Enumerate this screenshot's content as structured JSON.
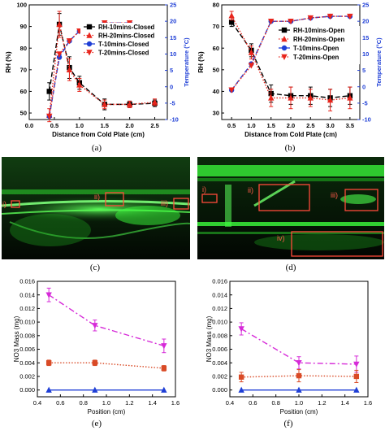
{
  "captions": [
    "(a)",
    "(b)",
    "(c)",
    "(d)",
    "(e)",
    "(f)"
  ],
  "photo_c_labels": [
    "i)",
    "ii)",
    "iii)"
  ],
  "photo_d_labels": [
    "i)",
    "ii)",
    "iii)",
    "iv)"
  ],
  "colors": {
    "black": "#000000",
    "red": "#e8251c",
    "blue": "#1f3fd6",
    "magenta": "#d62ad8",
    "rust": "#d94a26",
    "box": "#ff4a3a",
    "green": "#38ff3c"
  },
  "chart_data": [
    {
      "id": "a",
      "type": "line",
      "xlabel": "Distance from Cold Plate (cm)",
      "ylabel": "RH (%)",
      "y2label": "Temperature (°C)",
      "xlim": [
        0,
        2.75
      ],
      "ylim": [
        47,
        100
      ],
      "y2lim": [
        -10,
        25
      ],
      "xticks": [
        "0.0",
        "0.5",
        "1.0",
        "1.5",
        "2.0",
        "2.5"
      ],
      "yticks": [
        "50",
        "60",
        "70",
        "80",
        "90",
        "100"
      ],
      "y2ticks": [
        "-10",
        "-5",
        "0",
        "5",
        "10",
        "15",
        "20",
        "25"
      ],
      "legend_position": "top-right",
      "series": [
        {
          "name": "RH-10mins-Closed",
          "axis": "left",
          "marker": "square",
          "color": "#000000",
          "line": "dashed",
          "x": [
            0.4,
            0.6,
            0.8,
            1.0,
            1.5,
            2.0,
            2.5
          ],
          "y": [
            60,
            91,
            71,
            64,
            54,
            54,
            54.5
          ],
          "err": [
            4,
            5,
            5,
            3,
            2.5,
            1.5,
            1.5
          ]
        },
        {
          "name": "RH-20mins-Closed",
          "axis": "left",
          "marker": "triangle-up",
          "color": "#e8251c",
          "line": "dotted",
          "x": [
            0.4,
            0.6,
            0.8,
            1.0,
            1.5,
            2.0,
            2.5
          ],
          "y": [
            49,
            91,
            70,
            63,
            54,
            54,
            55
          ],
          "err": [
            3,
            6,
            5,
            3,
            2,
            1.5,
            1.5
          ]
        },
        {
          "name": "T-10mins-Closed",
          "axis": "right",
          "marker": "circle",
          "color": "#1f3fd6",
          "line": "dashed",
          "x": [
            0.4,
            0.6,
            0.8,
            1.0,
            1.5,
            2.0,
            2.5
          ],
          "y": [
            -9,
            9,
            14,
            17,
            19.5,
            19.5,
            18.5
          ]
        },
        {
          "name": "T-20mins-Closed",
          "axis": "right",
          "marker": "triangle-down",
          "color": "#e8251c",
          "line": "dotted",
          "x": [
            0.4,
            0.6,
            0.8,
            1.0,
            1.5,
            2.0,
            2.5
          ],
          "y": [
            -9,
            10,
            14,
            17,
            19.5,
            19.5,
            18.5
          ]
        }
      ]
    },
    {
      "id": "b",
      "type": "line",
      "xlabel": "Distance from Cold Plate (cm)",
      "ylabel": "RH (%)",
      "y2label": "Temperature (°C)",
      "xlim": [
        0.25,
        3.75
      ],
      "ylim": [
        27,
        80
      ],
      "y2lim": [
        -10,
        25
      ],
      "xticks": [
        "0.5",
        "1.0",
        "1.5",
        "2.0",
        "2.5",
        "3.0",
        "3.5"
      ],
      "yticks": [
        "30",
        "40",
        "50",
        "60",
        "70",
        "80"
      ],
      "y2ticks": [
        "-10",
        "-5",
        "0",
        "5",
        "10",
        "15",
        "20",
        "25"
      ],
      "legend_position": "center-right",
      "series": [
        {
          "name": "RH-10mins-Open",
          "axis": "left",
          "marker": "square",
          "color": "#000000",
          "line": "dashed",
          "x": [
            0.5,
            1.0,
            1.5,
            2.0,
            2.5,
            3.0,
            3.5
          ],
          "y": [
            72,
            59,
            39,
            38,
            38,
            37,
            38
          ],
          "err": [
            2,
            3,
            4,
            4,
            4,
            4,
            4
          ]
        },
        {
          "name": "RH-20mins-Open",
          "axis": "left",
          "marker": "triangle-up",
          "color": "#e8251c",
          "line": "dotted",
          "x": [
            0.5,
            1.0,
            1.5,
            2.0,
            2.5,
            3.0,
            3.5
          ],
          "y": [
            75,
            58,
            37,
            37,
            37,
            36,
            37
          ],
          "err": [
            2,
            3,
            4,
            5,
            4,
            5,
            5
          ]
        },
        {
          "name": "T-10mins-Open",
          "axis": "right",
          "marker": "circle",
          "color": "#1f3fd6",
          "line": "dashed",
          "x": [
            0.5,
            1.0,
            1.5,
            2.0,
            2.5,
            3.0,
            3.5
          ],
          "y": [
            -1,
            7,
            20,
            20,
            21,
            21.5,
            21.5
          ]
        },
        {
          "name": "T-20mins-Open",
          "axis": "right",
          "marker": "triangle-down",
          "color": "#e8251c",
          "line": "dotted",
          "x": [
            0.5,
            1.0,
            1.5,
            2.0,
            2.5,
            3.0,
            3.5
          ],
          "y": [
            -1,
            6.5,
            20,
            20,
            21,
            21.5,
            21.5
          ]
        }
      ]
    },
    {
      "id": "e",
      "type": "line",
      "xlabel": "Position (cm)",
      "ylabel": "NO3 Mass (mg)",
      "xlim": [
        0.4,
        1.6
      ],
      "ylim": [
        -0.001,
        0.016
      ],
      "xticks": [
        "0.4",
        "0.6",
        "0.8",
        "1.0",
        "1.2",
        "1.4",
        "1.6"
      ],
      "yticks": [
        "0.000",
        "0.002",
        "0.004",
        "0.006",
        "0.008",
        "0.010",
        "0.012",
        "0.014",
        "0.016"
      ],
      "series": [
        {
          "axis": "left",
          "marker": "triangle-down",
          "color": "#d62ad8",
          "line": "dashdot",
          "x": [
            0.5,
            0.9,
            1.5
          ],
          "y": [
            0.014,
            0.0095,
            0.0065
          ],
          "err": [
            0.001,
            0.0008,
            0.001
          ]
        },
        {
          "axis": "left",
          "marker": "square",
          "color": "#d94a26",
          "line": "dotted",
          "x": [
            0.5,
            0.9,
            1.5
          ],
          "y": [
            0.004,
            0.004,
            0.0032
          ],
          "err": [
            0.0004,
            0.0004,
            0.0004
          ]
        },
        {
          "axis": "left",
          "marker": "triangle-up",
          "color": "#1f3fd6",
          "line": "solid",
          "x": [
            0.5,
            0.9,
            1.5
          ],
          "y": [
            0,
            0,
            0
          ]
        }
      ]
    },
    {
      "id": "f",
      "type": "line",
      "xlabel": "Position (cm)",
      "ylabel": "NO3 Mass (mg)",
      "xlim": [
        0.4,
        1.6
      ],
      "ylim": [
        -0.001,
        0.016
      ],
      "xticks": [
        "0.4",
        "0.6",
        "0.8",
        "1.0",
        "1.2",
        "1.4",
        "1.6"
      ],
      "yticks": [
        "0.000",
        "0.002",
        "0.004",
        "0.006",
        "0.008",
        "0.010",
        "0.012",
        "0.014",
        "0.016"
      ],
      "series": [
        {
          "axis": "left",
          "marker": "triangle-down",
          "color": "#d62ad8",
          "line": "dashdot",
          "x": [
            0.5,
            1.0,
            1.5
          ],
          "y": [
            0.009,
            0.004,
            0.0038
          ],
          "err": [
            0.0009,
            0.0009,
            0.0012
          ]
        },
        {
          "axis": "left",
          "marker": "square",
          "color": "#d94a26",
          "line": "dotted",
          "x": [
            0.5,
            1.0,
            1.5
          ],
          "y": [
            0.0019,
            0.0021,
            0.002
          ],
          "err": [
            0.0007,
            0.0009,
            0.0009
          ]
        },
        {
          "axis": "left",
          "marker": "triangle-up",
          "color": "#1f3fd6",
          "line": "solid",
          "x": [
            0.5,
            1.0,
            1.5
          ],
          "y": [
            0,
            0,
            0
          ]
        }
      ]
    }
  ]
}
